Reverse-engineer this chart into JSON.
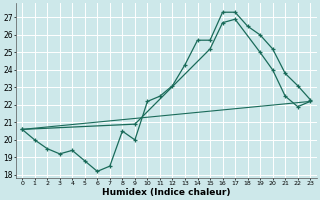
{
  "xlabel": "Humidex (Indice chaleur)",
  "xlim": [
    -0.5,
    23.5
  ],
  "ylim": [
    17.8,
    27.8
  ],
  "yticks": [
    18,
    19,
    20,
    21,
    22,
    23,
    24,
    25,
    26,
    27
  ],
  "xticks": [
    0,
    1,
    2,
    3,
    4,
    5,
    6,
    7,
    8,
    9,
    10,
    11,
    12,
    13,
    14,
    15,
    16,
    17,
    18,
    19,
    20,
    21,
    22,
    23
  ],
  "bg_color": "#cde8ea",
  "grid_color": "#ffffff",
  "line_color": "#1a6b5a",
  "line1_x": [
    0,
    1,
    2,
    3,
    4,
    5,
    6,
    7,
    8,
    9,
    10,
    11,
    12,
    13,
    14,
    15,
    16,
    17,
    18,
    19,
    20,
    21,
    22,
    23
  ],
  "line1_y": [
    20.6,
    20.0,
    19.5,
    19.2,
    19.4,
    18.8,
    18.2,
    18.5,
    20.5,
    20.0,
    22.2,
    22.5,
    23.1,
    24.3,
    25.7,
    25.7,
    27.3,
    27.3,
    26.5,
    26.0,
    25.2,
    23.8,
    23.1,
    22.3
  ],
  "line2_x": [
    0,
    9,
    15,
    16,
    17,
    19,
    20,
    21,
    22,
    23
  ],
  "line2_y": [
    20.6,
    20.9,
    25.2,
    26.7,
    26.9,
    25.0,
    24.0,
    22.5,
    21.9,
    22.2
  ],
  "line3_x": [
    0,
    23
  ],
  "line3_y": [
    20.6,
    22.2
  ]
}
